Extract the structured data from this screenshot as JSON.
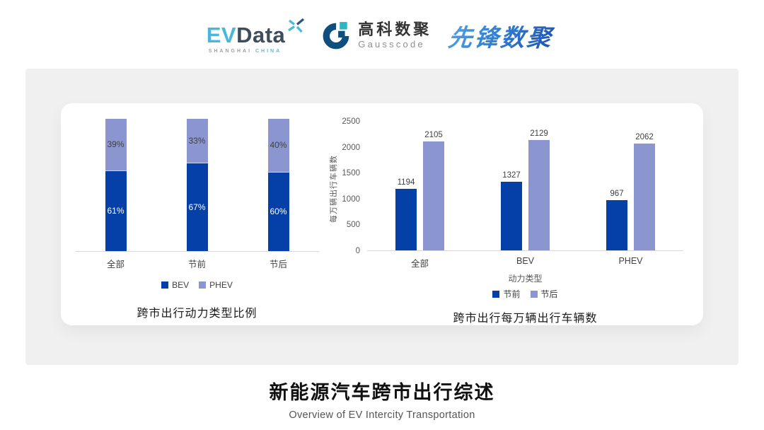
{
  "header": {
    "evdata": {
      "ev": "EV",
      "data": "Data",
      "tagline_left": "SHANGHAI",
      "tagline_right": "CHINA"
    },
    "gausscode": {
      "name_cn": "高科数聚",
      "name_en": "Gausscode"
    },
    "pioneer": {
      "name_cn": "先锋数聚"
    }
  },
  "colors": {
    "series_dark": "#0540a8",
    "series_light": "#8b96d0",
    "axis_text": "#595959",
    "label_text": "#3f3f3f",
    "panel_bg": "#f0f0f0",
    "evdata_blue": "#48b7da",
    "evdata_dark": "#3e4c5c",
    "gauss_dark": "#0f4f7e",
    "gauss_cyan": "#2fb4c3"
  },
  "chart_data": [
    {
      "type": "bar",
      "variant": "stacked-100",
      "title": "跨市出行动力类型比例",
      "categories": [
        "全部",
        "节前",
        "节后"
      ],
      "series": [
        {
          "name": "BEV",
          "values": [
            61,
            67,
            60
          ]
        },
        {
          "name": "PHEV",
          "values": [
            39,
            33,
            40
          ]
        }
      ],
      "value_suffix": "%",
      "ylim": [
        0,
        100
      ],
      "grid": false,
      "legend_position": "bottom"
    },
    {
      "type": "bar",
      "variant": "grouped",
      "title": "跨市出行每万辆出行车辆数",
      "categories": [
        "全部",
        "BEV",
        "PHEV"
      ],
      "series": [
        {
          "name": "节前",
          "values": [
            1194,
            1327,
            967
          ]
        },
        {
          "name": "节后",
          "values": [
            2105,
            2129,
            2062
          ]
        }
      ],
      "xlabel": "动力类型",
      "ylabel": "每万辆出行车辆数",
      "ylim": [
        0,
        2500
      ],
      "yticks": [
        0,
        500,
        1000,
        1500,
        2000,
        2500
      ],
      "grid": false,
      "legend_position": "bottom"
    }
  ],
  "footer": {
    "title": "新能源汽车跨市出行综述",
    "subtitle": "Overview of EV Intercity Transportation"
  }
}
